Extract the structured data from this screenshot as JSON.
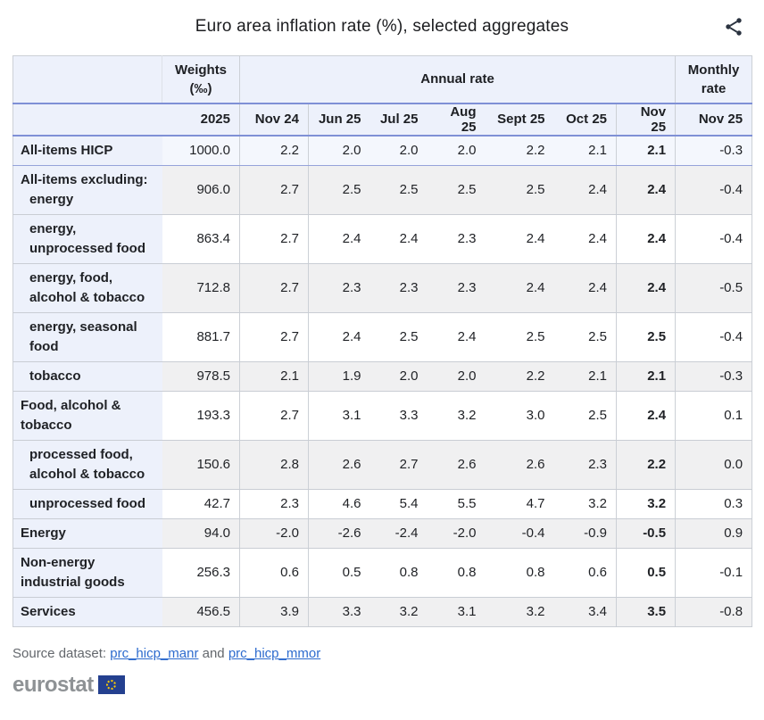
{
  "title": "Euro area inflation rate (%), selected aggregates",
  "colors": {
    "accent_rule_blue": "#7f90d6",
    "header_bg": "#edf1fb",
    "first_row_bg": "#f4f7fd",
    "stripe_gray": "#f0f0f1",
    "border_gray": "#c9cdd4",
    "link_blue": "#2d6bce",
    "eu_flag_blue": "#24408f",
    "eu_star_yellow": "#ffcc00",
    "logo_gray": "#8e9295",
    "share_icon_color": "#2b3340"
  },
  "chart_data": {
    "type": "table",
    "title": "Euro area inflation rate (%), selected aggregates",
    "header": {
      "weights_line1": "Weights",
      "weights_line2": "(‰)",
      "annual_label": "Annual rate",
      "monthly_line1": "Monthly",
      "monthly_line2": "rate",
      "year": "2025",
      "months": [
        "Nov 24",
        "Jun 25",
        "Jul 25",
        "Aug 25",
        "Sept 25",
        "Oct 25",
        "Nov 25"
      ],
      "monthly_month": "Nov 25"
    },
    "rows": [
      {
        "label_lines": [
          {
            "text": "All-items HICP",
            "indent": false
          }
        ],
        "weight": "1000.0",
        "annual": [
          "2.2",
          "2.0",
          "2.0",
          "2.0",
          "2.2",
          "2.1",
          "2.1"
        ],
        "monthly": "-0.3"
      },
      {
        "label_lines": [
          {
            "text": "All-items excluding:",
            "indent": false
          },
          {
            "text": "energy",
            "indent": true
          }
        ],
        "weight": "906.0",
        "annual": [
          "2.7",
          "2.5",
          "2.5",
          "2.5",
          "2.5",
          "2.4",
          "2.4"
        ],
        "monthly": "-0.4"
      },
      {
        "label_lines": [
          {
            "text": "energy,",
            "indent": true
          },
          {
            "text": "unprocessed food",
            "indent": true
          }
        ],
        "weight": "863.4",
        "annual": [
          "2.7",
          "2.4",
          "2.4",
          "2.3",
          "2.4",
          "2.4",
          "2.4"
        ],
        "monthly": "-0.4"
      },
      {
        "label_lines": [
          {
            "text": "energy, food,",
            "indent": true
          },
          {
            "text": "alcohol & tobacco",
            "indent": true
          }
        ],
        "weight": "712.8",
        "annual": [
          "2.7",
          "2.3",
          "2.3",
          "2.3",
          "2.4",
          "2.4",
          "2.4"
        ],
        "monthly": "-0.5"
      },
      {
        "label_lines": [
          {
            "text": "energy, seasonal",
            "indent": true
          },
          {
            "text": "food",
            "indent": true
          }
        ],
        "weight": "881.7",
        "annual": [
          "2.7",
          "2.4",
          "2.5",
          "2.4",
          "2.5",
          "2.5",
          "2.5"
        ],
        "monthly": "-0.4"
      },
      {
        "label_lines": [
          {
            "text": "tobacco",
            "indent": true
          }
        ],
        "weight": "978.5",
        "annual": [
          "2.1",
          "1.9",
          "2.0",
          "2.0",
          "2.2",
          "2.1",
          "2.1"
        ],
        "monthly": "-0.3"
      },
      {
        "label_lines": [
          {
            "text": "Food, alcohol &",
            "indent": false
          },
          {
            "text": "tobacco",
            "indent": false
          }
        ],
        "weight": "193.3",
        "annual": [
          "2.7",
          "3.1",
          "3.3",
          "3.2",
          "3.0",
          "2.5",
          "2.4"
        ],
        "monthly": "0.1"
      },
      {
        "label_lines": [
          {
            "text": "processed food,",
            "indent": true
          },
          {
            "text": "alcohol & tobacco",
            "indent": true
          }
        ],
        "weight": "150.6",
        "annual": [
          "2.8",
          "2.6",
          "2.7",
          "2.6",
          "2.6",
          "2.3",
          "2.2"
        ],
        "monthly": "0.0"
      },
      {
        "label_lines": [
          {
            "text": "unprocessed food",
            "indent": true
          }
        ],
        "weight": "42.7",
        "annual": [
          "2.3",
          "4.6",
          "5.4",
          "5.5",
          "4.7",
          "3.2",
          "3.2"
        ],
        "monthly": "0.3"
      },
      {
        "label_lines": [
          {
            "text": "Energy",
            "indent": false
          }
        ],
        "weight": "94.0",
        "annual": [
          "-2.0",
          "-2.6",
          "-2.4",
          "-2.0",
          "-0.4",
          "-0.9",
          "-0.5"
        ],
        "monthly": "0.9"
      },
      {
        "label_lines": [
          {
            "text": "Non-energy",
            "indent": false
          },
          {
            "text": "industrial goods",
            "indent": false
          }
        ],
        "weight": "256.3",
        "annual": [
          "0.6",
          "0.5",
          "0.8",
          "0.8",
          "0.8",
          "0.6",
          "0.5"
        ],
        "monthly": "-0.1"
      },
      {
        "label_lines": [
          {
            "text": "Services",
            "indent": false
          }
        ],
        "weight": "456.5",
        "annual": [
          "3.9",
          "3.3",
          "3.2",
          "3.1",
          "3.2",
          "3.4",
          "3.5"
        ],
        "monthly": "-0.8"
      }
    ]
  },
  "footer": {
    "source_prefix": "Source dataset: ",
    "link1": "prc_hicp_manr",
    "and_text": " and ",
    "link2": "prc_hicp_mmor",
    "logo_text": "eurostat"
  }
}
